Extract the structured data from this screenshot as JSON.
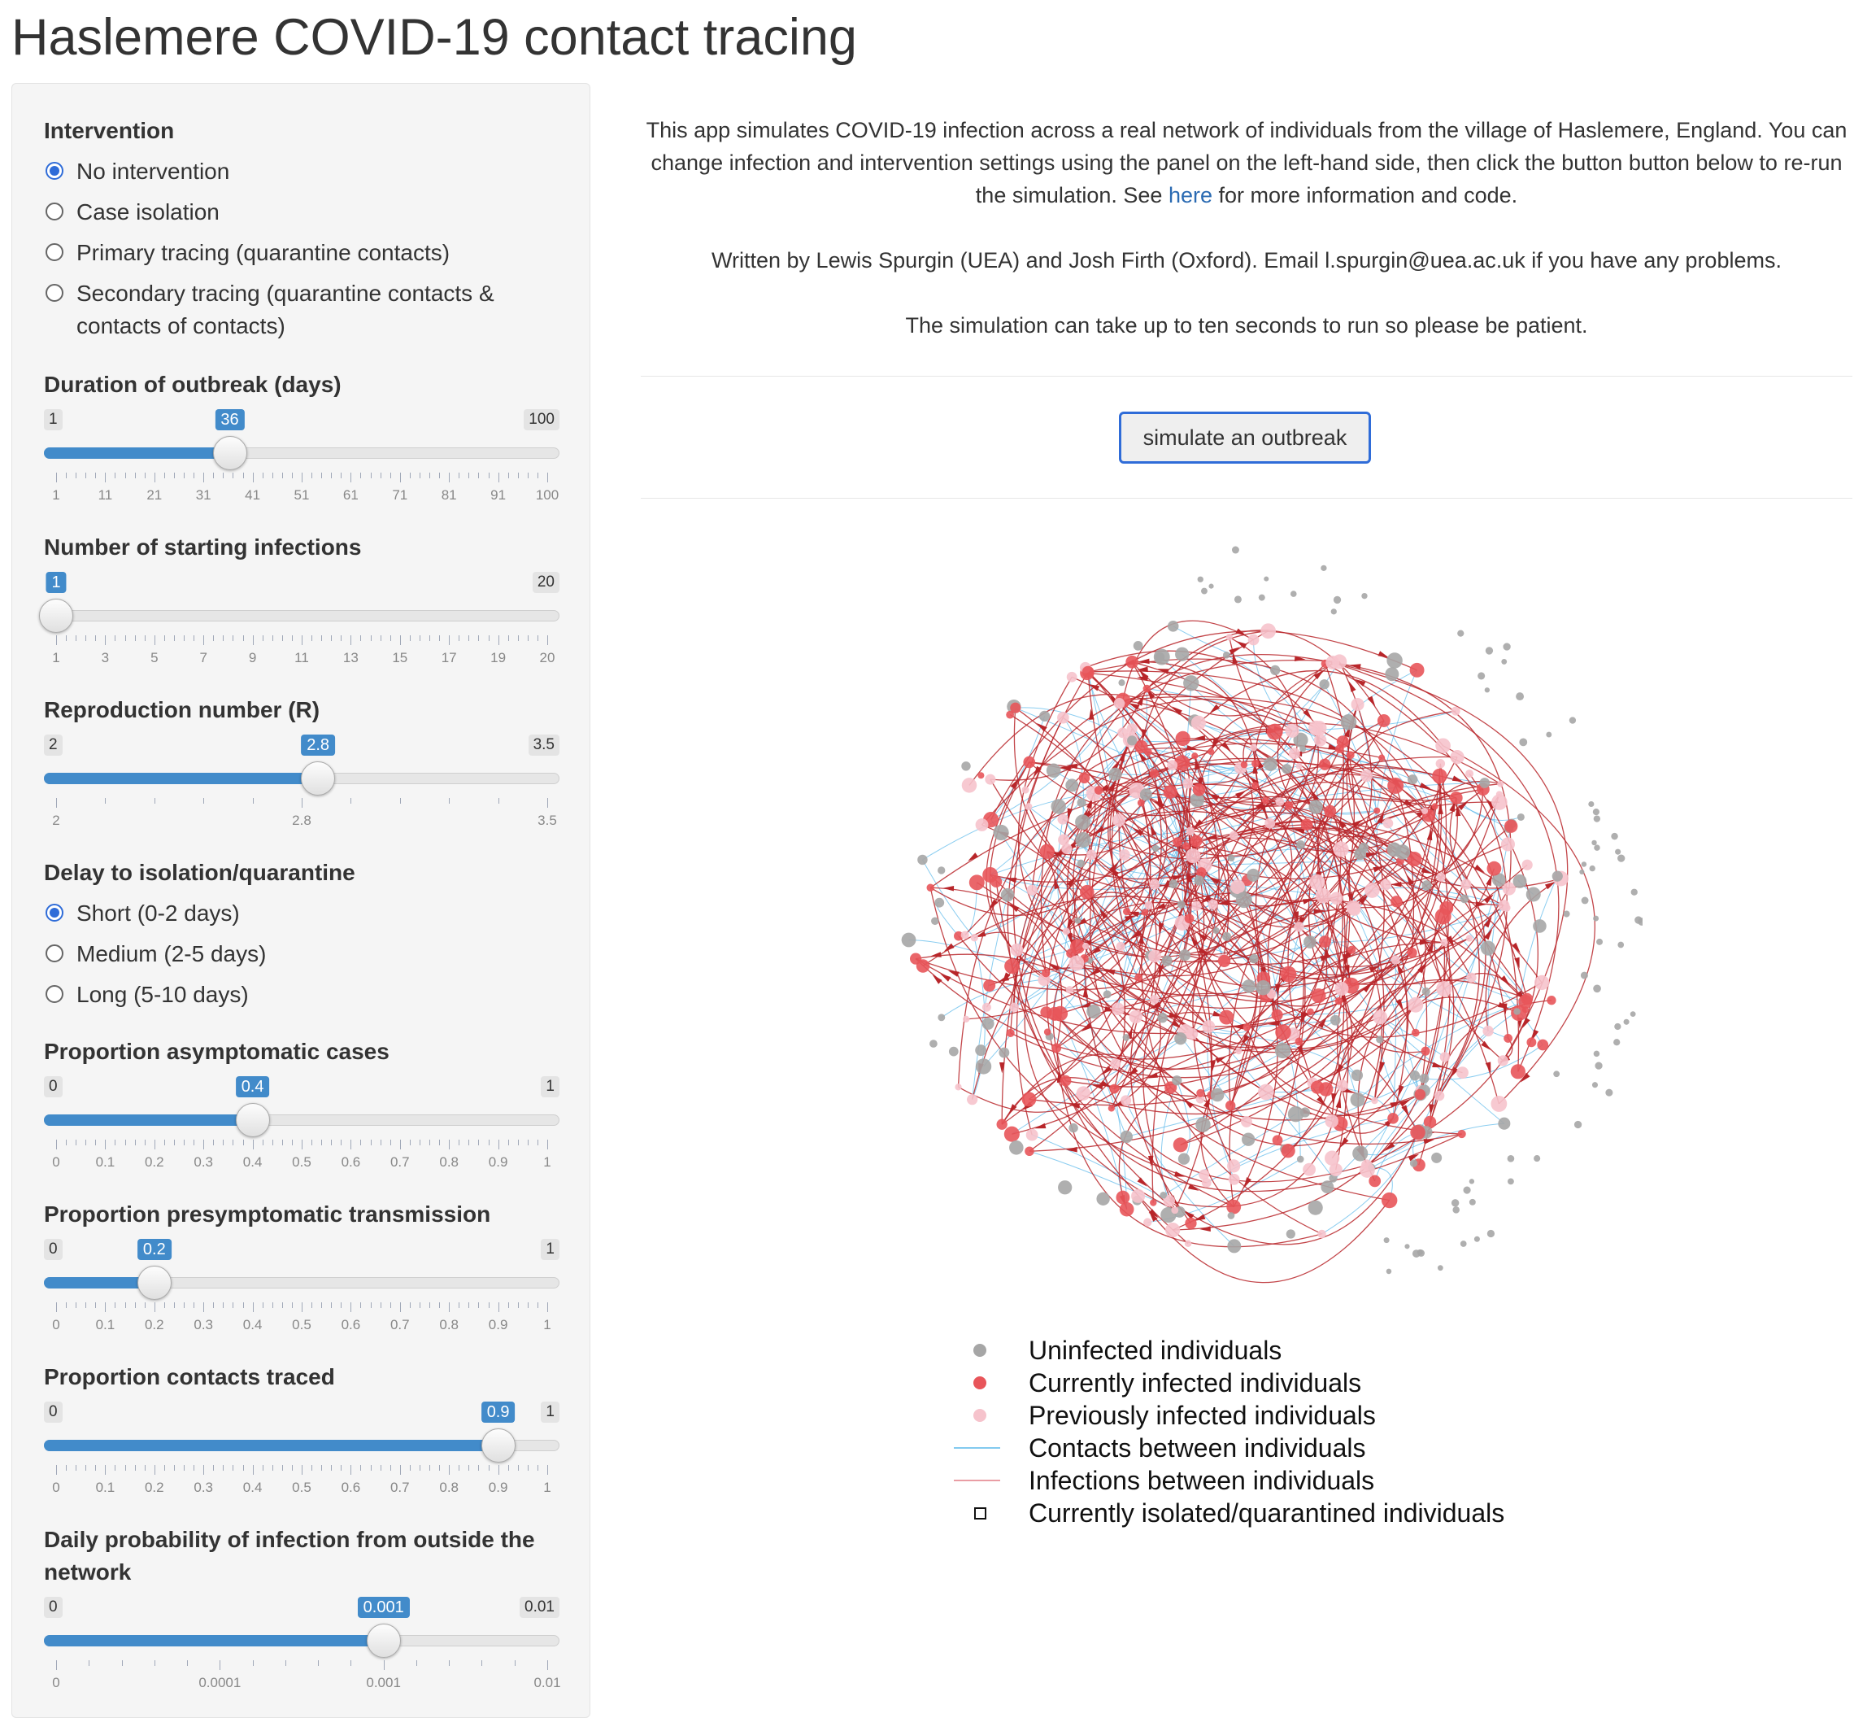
{
  "page": {
    "title": "Haslemere COVID-19 contact tracing"
  },
  "colors": {
    "accent": "#428bca",
    "radio_selected": "#2f6cd8",
    "uninfected": "#a6a6a6",
    "currently_infected": "#e8555a",
    "previously_infected": "#f6c3cc",
    "contact_edge": "#5ab8ea",
    "infection_edge": "#b8262a"
  },
  "sidebar": {
    "intervention": {
      "label": "Intervention",
      "options": [
        {
          "label": "No intervention",
          "selected": true
        },
        {
          "label": "Case isolation",
          "selected": false
        },
        {
          "label": "Primary tracing (quarantine contacts)",
          "selected": false
        },
        {
          "label": "Secondary tracing (quarantine contacts &",
          "label2": "contacts of contacts)",
          "selected": false
        }
      ]
    },
    "duration": {
      "label": "Duration of outbreak (days)",
      "min": "1",
      "max": "100",
      "value": "36",
      "fraction": 0.3535,
      "ticks": [
        "1",
        "11",
        "21",
        "31",
        "41",
        "51",
        "61",
        "71",
        "81",
        "91",
        "100"
      ]
    },
    "starting": {
      "label": "Number of starting infections",
      "min": "1",
      "max": "20",
      "value": "1",
      "fraction": 0.0,
      "ticks": [
        "1",
        "3",
        "5",
        "7",
        "9",
        "11",
        "13",
        "15",
        "17",
        "19",
        "20"
      ]
    },
    "reproduction": {
      "label": "Reproduction number (R)",
      "min": "2",
      "max": "3.5",
      "value": "2.8",
      "fraction": 0.5333,
      "ticks": [
        "2",
        "2.8",
        "3.5"
      ]
    },
    "delay": {
      "label": "Delay to isolation/quarantine",
      "options": [
        {
          "label": "Short (0-2 days)",
          "selected": true
        },
        {
          "label": "Medium (2-5 days)",
          "selected": false
        },
        {
          "label": "Long (5-10 days)",
          "selected": false
        }
      ]
    },
    "asymptomatic": {
      "label": "Proportion asymptomatic cases",
      "min": "0",
      "max": "1",
      "value": "0.4",
      "fraction": 0.4,
      "ticks": [
        "0",
        "0.1",
        "0.2",
        "0.3",
        "0.4",
        "0.5",
        "0.6",
        "0.7",
        "0.8",
        "0.9",
        "1"
      ]
    },
    "presymptomatic": {
      "label": "Proportion presymptomatic transmission",
      "min": "0",
      "max": "1",
      "value": "0.2",
      "fraction": 0.2,
      "ticks": [
        "0",
        "0.1",
        "0.2",
        "0.3",
        "0.4",
        "0.5",
        "0.6",
        "0.7",
        "0.8",
        "0.9",
        "1"
      ]
    },
    "traced": {
      "label": "Proportion contacts traced",
      "min": "0",
      "max": "1",
      "value": "0.9",
      "fraction": 0.9,
      "ticks": [
        "0",
        "0.1",
        "0.2",
        "0.3",
        "0.4",
        "0.5",
        "0.6",
        "0.7",
        "0.8",
        "0.9",
        "1"
      ]
    },
    "outside": {
      "label": "Daily probability of infection from outside the",
      "label2": "network",
      "min": "0",
      "max": "0.01",
      "value": "0.001",
      "fraction": 0.6667,
      "ticks": [
        "0",
        "0.0001",
        "0.001",
        "0.01"
      ]
    }
  },
  "main": {
    "intro_before_link": "This app simulates COVID-19 infection across a real network of individuals from the village of Haslemere, England. You can change infection and intervention settings using the panel on the left-hand side, then click the button button below to re-run the simulation. See ",
    "intro_link": "here",
    "intro_after_link": " for more information and code.",
    "authors": "Written by Lewis Spurgin (UEA) and Josh Firth (Oxford). Email l.spurgin@uea.ac.uk if you have any problems.",
    "patience": "The simulation can take up to ten seconds to run so please be patient.",
    "button_label": "simulate an outbreak"
  },
  "legend": [
    {
      "symbol": "grey-dot",
      "label": "Uninfected individuals"
    },
    {
      "symbol": "red-dot",
      "label": "Currently infected individuals"
    },
    {
      "symbol": "pink-dot",
      "label": "Previously infected individuals"
    },
    {
      "symbol": "blue-line",
      "label": "Contacts between individuals"
    },
    {
      "symbol": "red-line",
      "label": "Infections between individuals"
    },
    {
      "symbol": "square",
      "label": "Currently isolated/quarantined individuals"
    }
  ]
}
